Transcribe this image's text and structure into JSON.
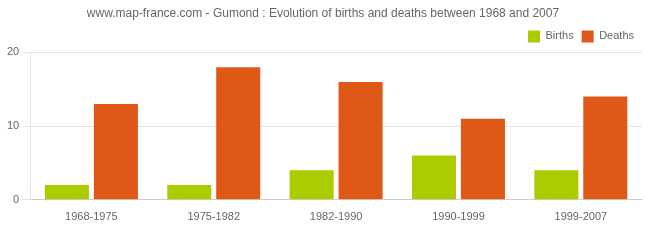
{
  "chart_data": {
    "type": "bar",
    "title": "www.map-france.com - Gumond : Evolution of births and deaths between 1968 and 2007",
    "categories": [
      "1968-1975",
      "1975-1982",
      "1982-1990",
      "1990-1999",
      "1999-2007"
    ],
    "series": [
      {
        "name": "Births",
        "color": "#aacc00",
        "values": [
          2,
          2,
          4,
          6,
          4
        ]
      },
      {
        "name": "Deaths",
        "color": "#e05818",
        "values": [
          13,
          18,
          16,
          11,
          14
        ]
      }
    ],
    "ylim": [
      0,
      20
    ],
    "yticks": [
      0,
      10,
      20
    ],
    "grid": true,
    "legend": "upper right"
  }
}
